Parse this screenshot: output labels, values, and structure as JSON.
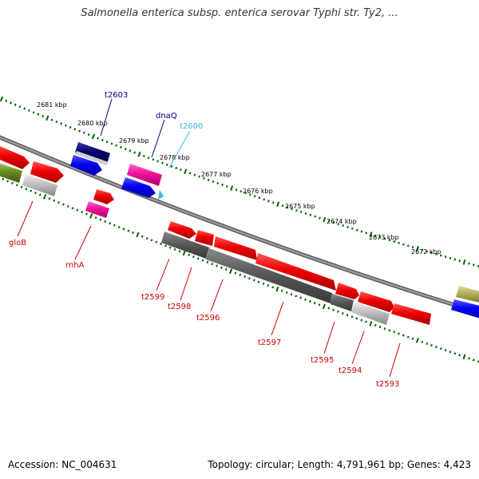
{
  "title": "Salmonella enterica subsp. enterica serovar Typhi str. Ty2, ...",
  "footer": {
    "accession": "Accession: NC_004631",
    "summary": "Topology: circular; Length: 4,791,961 bp; Genes: 4,423"
  },
  "colors": {
    "backbone": "#808080",
    "tick": "#006400",
    "label_red": "#cc0000",
    "label_navy": "#000080",
    "label_cyan": "#33bbdd"
  },
  "kbp_labels": [
    "2681 kbp",
    "2680 kbp",
    "2679 kbp",
    "2678 kbp",
    "2677 kbp",
    "2676 kbp",
    "2675 kbp",
    "2674 kbp",
    "2673 kbp",
    "2672 kbp"
  ],
  "gene_labels": {
    "t2603": "t2603",
    "dnaQ": "dnaQ",
    "t2600": "t2600",
    "gloB": "gloB",
    "rnhA": "rnhA",
    "t2599": "t2599",
    "t2598": "t2598",
    "t2596": "t2596",
    "t2597": "t2597",
    "t2595": "t2595",
    "t2594": "t2594",
    "t2593": "t2593"
  }
}
